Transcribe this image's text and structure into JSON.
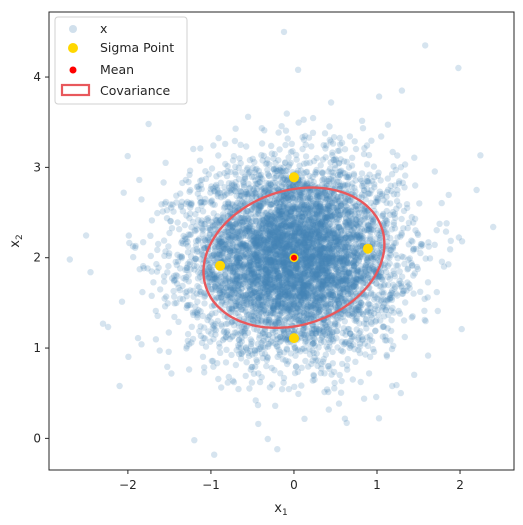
{
  "chart_data": {
    "type": "scatter",
    "xlabel": "x",
    "xlabel_sub": "1",
    "ylabel": "x",
    "ylabel_sub": "2",
    "xlim": [
      -2.95,
      2.65
    ],
    "ylim": [
      -0.35,
      4.72
    ],
    "xticks": [
      -2,
      -1,
      0,
      1,
      2
    ],
    "yticks": [
      0,
      1,
      2,
      3,
      4
    ],
    "grid": false,
    "legend": {
      "placement": "top-left",
      "entries": [
        {
          "label": "x",
          "marker": "dot",
          "color": "#4682b4"
        },
        {
          "label": "Sigma Point",
          "marker": "dot",
          "color": "#ffd700"
        },
        {
          "label": "Mean",
          "marker": "dot-small",
          "color": "#ff0000"
        },
        {
          "label": "Covariance",
          "marker": "rect",
          "color": "#e8585c"
        }
      ]
    },
    "samples": {
      "name": "x",
      "color": "#4682b4",
      "alpha": 0.22,
      "count": 6000,
      "mean": [
        0,
        2
      ],
      "std": [
        0.62,
        0.52
      ],
      "outliers": [
        {
          "x": -2.7,
          "y": 1.98
        },
        {
          "x": -2.45,
          "y": 1.84
        },
        {
          "x": -2.3,
          "y": 1.27
        },
        {
          "x": -2.1,
          "y": 0.58
        },
        {
          "x": -0.12,
          "y": 4.5
        },
        {
          "x": 1.58,
          "y": 4.35
        },
        {
          "x": 1.98,
          "y": 4.1
        },
        {
          "x": 2.4,
          "y": 2.34
        },
        {
          "x": 2.02,
          "y": 1.21
        },
        {
          "x": -1.2,
          "y": -0.02
        },
        {
          "x": -0.2,
          "y": -0.12
        },
        {
          "x": 0.05,
          "y": 4.08
        },
        {
          "x": -2.05,
          "y": 2.72
        },
        {
          "x": 2.2,
          "y": 2.75
        },
        {
          "x": -1.75,
          "y": 3.48
        },
        {
          "x": 1.3,
          "y": 3.85
        }
      ]
    },
    "sigma_points": {
      "name": "Sigma Point",
      "color": "#ffd700",
      "points": [
        {
          "x": 0.0,
          "y": 2.89
        },
        {
          "x": 0.89,
          "y": 2.1
        },
        {
          "x": 0.0,
          "y": 1.11
        },
        {
          "x": -0.89,
          "y": 1.91
        }
      ]
    },
    "mean": {
      "name": "Mean",
      "color": "#ff0000",
      "x": 0.0,
      "y": 2.0
    },
    "covariance": {
      "name": "Covariance",
      "color": "#e8585c",
      "center": [
        0,
        2
      ],
      "semi_axes": [
        1.24,
        1.26
      ],
      "angle_deg": 38,
      "tilt": 0.12
    }
  }
}
